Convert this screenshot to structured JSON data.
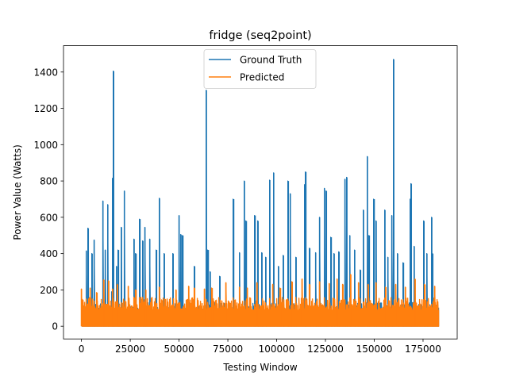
{
  "chart_data": {
    "type": "line",
    "title": "fridge (seq2point)",
    "xlabel": "Testing Window",
    "ylabel": "Power Value (Watts)",
    "xlim": [
      -9200,
      192500
    ],
    "ylim": [
      -70,
      1545
    ],
    "xticks": [
      0,
      25000,
      50000,
      75000,
      100000,
      125000,
      150000,
      175000
    ],
    "yticks": [
      0,
      200,
      400,
      600,
      800,
      1000,
      1200,
      1400
    ],
    "legend_position": "upper center",
    "grid": false,
    "series": [
      {
        "name": "Ground Truth",
        "color": "#1f77b4",
        "x_range": [
          0,
          183000
        ],
        "baseline_low": 0,
        "baseline_high": 130,
        "spikes": [
          [
            2500,
            415
          ],
          [
            3500,
            540
          ],
          [
            5500,
            400
          ],
          [
            6500,
            475
          ],
          [
            11000,
            690
          ],
          [
            12200,
            420
          ],
          [
            13500,
            670
          ],
          [
            15500,
            190
          ],
          [
            16000,
            815
          ],
          [
            16500,
            1405
          ],
          [
            18000,
            330
          ],
          [
            19000,
            420
          ],
          [
            20500,
            545
          ],
          [
            22000,
            745
          ],
          [
            27000,
            480
          ],
          [
            28000,
            400
          ],
          [
            30000,
            590
          ],
          [
            31500,
            470
          ],
          [
            32500,
            545
          ],
          [
            35000,
            480
          ],
          [
            38500,
            420
          ],
          [
            40000,
            705
          ],
          [
            42500,
            400
          ],
          [
            47000,
            400
          ],
          [
            50000,
            610
          ],
          [
            51000,
            505
          ],
          [
            52000,
            500
          ],
          [
            58000,
            330
          ],
          [
            64000,
            1300
          ],
          [
            65000,
            420
          ],
          [
            66000,
            300
          ],
          [
            71000,
            275
          ],
          [
            78000,
            700
          ],
          [
            81000,
            405
          ],
          [
            83500,
            800
          ],
          [
            84500,
            580
          ],
          [
            89000,
            610
          ],
          [
            90500,
            580
          ],
          [
            92500,
            405
          ],
          [
            94500,
            380
          ],
          [
            96500,
            805
          ],
          [
            98500,
            845
          ],
          [
            101000,
            330
          ],
          [
            103500,
            390
          ],
          [
            106000,
            800
          ],
          [
            107000,
            730
          ],
          [
            110000,
            380
          ],
          [
            114500,
            780
          ],
          [
            115000,
            850
          ],
          [
            117000,
            430
          ],
          [
            120000,
            405
          ],
          [
            122000,
            600
          ],
          [
            124500,
            760
          ],
          [
            125500,
            745
          ],
          [
            128000,
            490
          ],
          [
            129500,
            400
          ],
          [
            132000,
            410
          ],
          [
            135000,
            810
          ],
          [
            136000,
            820
          ],
          [
            137500,
            500
          ],
          [
            140000,
            420
          ],
          [
            143000,
            310
          ],
          [
            144500,
            640
          ],
          [
            146500,
            935
          ],
          [
            147500,
            500
          ],
          [
            150000,
            700
          ],
          [
            151000,
            580
          ],
          [
            155500,
            640
          ],
          [
            157000,
            380
          ],
          [
            159000,
            610
          ],
          [
            160000,
            1470
          ],
          [
            162000,
            400
          ],
          [
            165000,
            350
          ],
          [
            168500,
            700
          ],
          [
            169000,
            785
          ],
          [
            170500,
            440
          ],
          [
            175500,
            580
          ],
          [
            177000,
            400
          ],
          [
            179500,
            600
          ],
          [
            180000,
            400
          ]
        ]
      },
      {
        "name": "Predicted",
        "color": "#ff7f0e",
        "x_range": [
          0,
          183000
        ],
        "baseline_low": 0,
        "baseline_high": 160,
        "spikes": [
          [
            0,
            205
          ],
          [
            4500,
            210
          ],
          [
            8000,
            185
          ],
          [
            11500,
            255
          ],
          [
            14000,
            250
          ],
          [
            16000,
            205
          ],
          [
            18500,
            230
          ],
          [
            24000,
            220
          ],
          [
            28000,
            200
          ],
          [
            33000,
            200
          ],
          [
            40000,
            215
          ],
          [
            48500,
            200
          ],
          [
            55000,
            220
          ],
          [
            58000,
            210
          ],
          [
            63000,
            205
          ],
          [
            67000,
            210
          ],
          [
            74000,
            240
          ],
          [
            81000,
            215
          ],
          [
            85000,
            210
          ],
          [
            90000,
            240
          ],
          [
            98000,
            230
          ],
          [
            102000,
            210
          ],
          [
            108000,
            245
          ],
          [
            113000,
            260
          ],
          [
            117000,
            230
          ],
          [
            122000,
            245
          ],
          [
            127000,
            235
          ],
          [
            131000,
            260
          ],
          [
            134000,
            230
          ],
          [
            138000,
            285
          ],
          [
            142000,
            240
          ],
          [
            147000,
            230
          ],
          [
            151000,
            240
          ],
          [
            156000,
            215
          ],
          [
            161000,
            230
          ],
          [
            166000,
            215
          ],
          [
            171000,
            260
          ],
          [
            176000,
            230
          ],
          [
            181000,
            220
          ]
        ]
      }
    ]
  }
}
